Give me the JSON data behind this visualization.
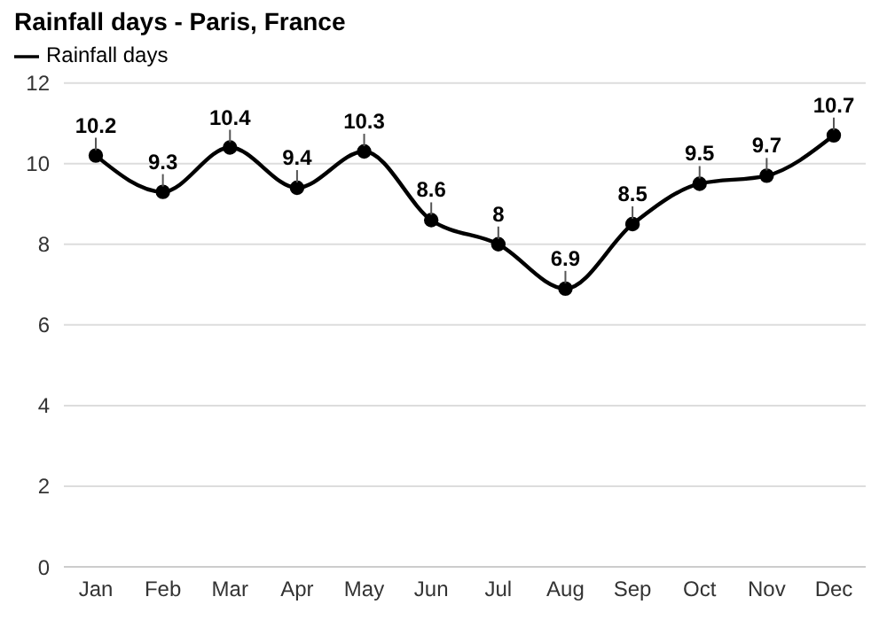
{
  "chart_data": {
    "type": "line",
    "title": "Rainfall days - Paris, France",
    "categories": [
      "Jan",
      "Feb",
      "Mar",
      "Apr",
      "May",
      "Jun",
      "Jul",
      "Aug",
      "Sep",
      "Oct",
      "Nov",
      "Dec"
    ],
    "series": [
      {
        "name": "Rainfall days",
        "color": "#000000",
        "values": [
          10.2,
          9.3,
          10.4,
          9.4,
          10.3,
          8.6,
          8,
          6.9,
          8.5,
          9.5,
          9.7,
          10.7
        ]
      }
    ],
    "ylim": [
      0,
      12
    ],
    "yticks": [
      0,
      2,
      4,
      6,
      8,
      10,
      12
    ],
    "grid": "y",
    "legend": "top left",
    "marker": "circle",
    "line_style": "solid",
    "data_labels": true
  }
}
